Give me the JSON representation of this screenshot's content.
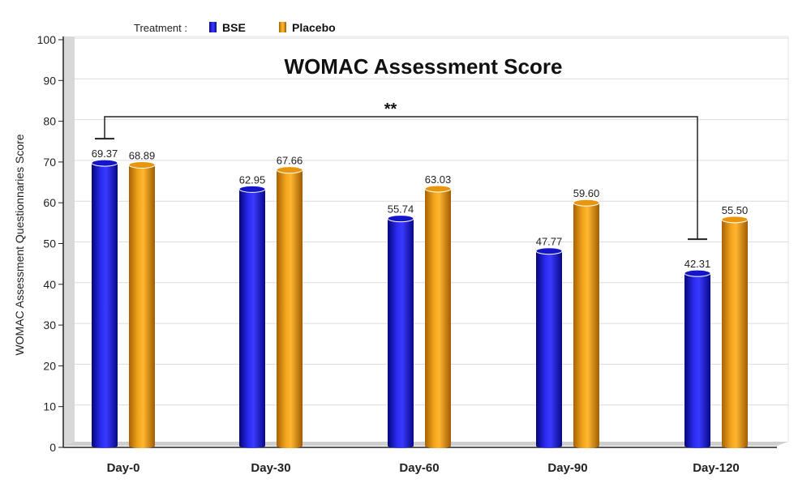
{
  "legend": {
    "label": "Treatment :"
  },
  "significance": {
    "marker": "**",
    "from_category": "Day-0",
    "to_category": "Day-120"
  },
  "colors": {
    "BSE": "#1414c8",
    "Placebo": "#e8960e"
  },
  "chart_data": {
    "type": "bar",
    "title": "WOMAC Assessment  Score",
    "xlabel": "",
    "ylabel": "WOMAC Assessment Questionnaries Score",
    "categories": [
      "Day-0",
      "Day-30",
      "Day-60",
      "Day-90",
      "Day-120"
    ],
    "series": [
      {
        "name": "BSE",
        "values": [
          69.37,
          62.95,
          55.74,
          47.77,
          42.31
        ],
        "labels": [
          "69.37",
          "62.95",
          "55.74",
          "47.77",
          "42.31"
        ]
      },
      {
        "name": "Placebo",
        "values": [
          68.89,
          67.66,
          63.03,
          59.6,
          55.5
        ],
        "labels": [
          "68.89",
          "67.66",
          "63.03",
          "59.60",
          "55.50"
        ]
      }
    ],
    "ylim": [
      0,
      100
    ],
    "yticks": [
      "0",
      "10",
      "20",
      "30",
      "40",
      "50",
      "60",
      "70",
      "80",
      "90",
      "100"
    ],
    "grid": true,
    "legend_position": "top-left"
  }
}
